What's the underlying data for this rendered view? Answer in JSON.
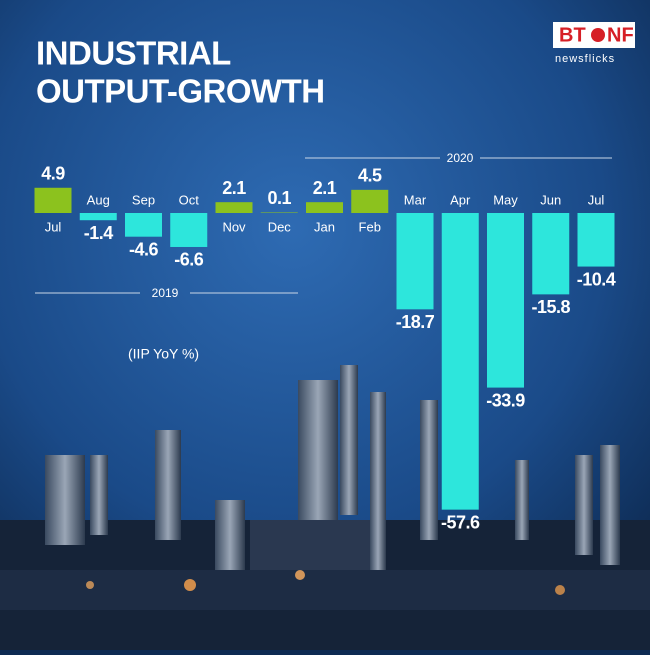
{
  "chart_data": {
    "type": "bar",
    "title": [
      "INDUSTRIAL",
      "OUTPUT-GROWTH"
    ],
    "subtitle": "(IIP YoY %)",
    "categories": [
      "Jul",
      "Aug",
      "Sep",
      "Oct",
      "Nov",
      "Dec",
      "Jan",
      "Feb",
      "Mar",
      "Apr",
      "May",
      "Jun",
      "Jul"
    ],
    "values": [
      4.9,
      -1.4,
      -4.6,
      -6.6,
      2.1,
      0.1,
      2.1,
      4.5,
      -18.7,
      -57.6,
      -33.9,
      -15.8,
      -10.4
    ],
    "positive_color": "#8cc21e",
    "negative_color": "#2de6dc",
    "annotations": [
      "2019",
      "2020"
    ]
  },
  "logo": {
    "left": "BT",
    "right": "NF",
    "tagline": "newsflicks"
  }
}
